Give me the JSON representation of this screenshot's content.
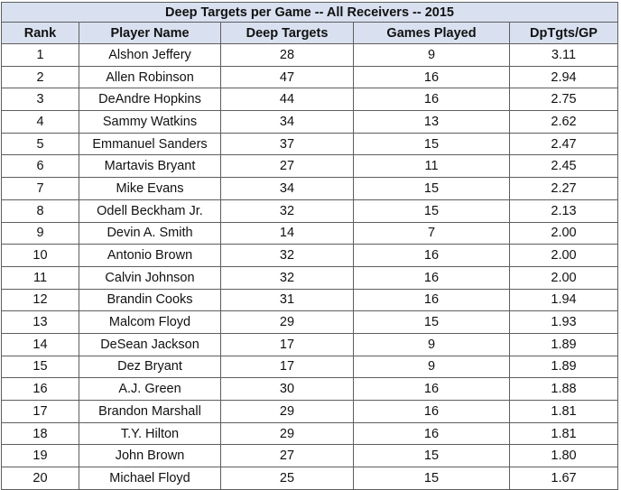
{
  "title": "Deep Targets per Game -- All Receivers -- 2015",
  "columns": [
    "Rank",
    "Player Name",
    "Deep Targets",
    "Games Played",
    "DpTgts/GP"
  ],
  "rows": [
    [
      "1",
      "Alshon Jeffery",
      "28",
      "9",
      "3.11"
    ],
    [
      "2",
      "Allen Robinson",
      "47",
      "16",
      "2.94"
    ],
    [
      "3",
      "DeAndre Hopkins",
      "44",
      "16",
      "2.75"
    ],
    [
      "4",
      "Sammy Watkins",
      "34",
      "13",
      "2.62"
    ],
    [
      "5",
      "Emmanuel Sanders",
      "37",
      "15",
      "2.47"
    ],
    [
      "6",
      "Martavis Bryant",
      "27",
      "11",
      "2.45"
    ],
    [
      "7",
      "Mike Evans",
      "34",
      "15",
      "2.27"
    ],
    [
      "8",
      "Odell Beckham Jr.",
      "32",
      "15",
      "2.13"
    ],
    [
      "9",
      "Devin A. Smith",
      "14",
      "7",
      "2.00"
    ],
    [
      "10",
      "Antonio Brown",
      "32",
      "16",
      "2.00"
    ],
    [
      "11",
      "Calvin Johnson",
      "32",
      "16",
      "2.00"
    ],
    [
      "12",
      "Brandin Cooks",
      "31",
      "16",
      "1.94"
    ],
    [
      "13",
      "Malcom Floyd",
      "29",
      "15",
      "1.93"
    ],
    [
      "14",
      "DeSean Jackson",
      "17",
      "9",
      "1.89"
    ],
    [
      "15",
      "Dez Bryant",
      "17",
      "9",
      "1.89"
    ],
    [
      "16",
      "A.J. Green",
      "30",
      "16",
      "1.88"
    ],
    [
      "17",
      "Brandon Marshall",
      "29",
      "16",
      "1.81"
    ],
    [
      "18",
      "T.Y. Hilton",
      "29",
      "16",
      "1.81"
    ],
    [
      "19",
      "John Brown",
      "27",
      "15",
      "1.80"
    ],
    [
      "20",
      "Michael Floyd",
      "25",
      "15",
      "1.67"
    ]
  ]
}
